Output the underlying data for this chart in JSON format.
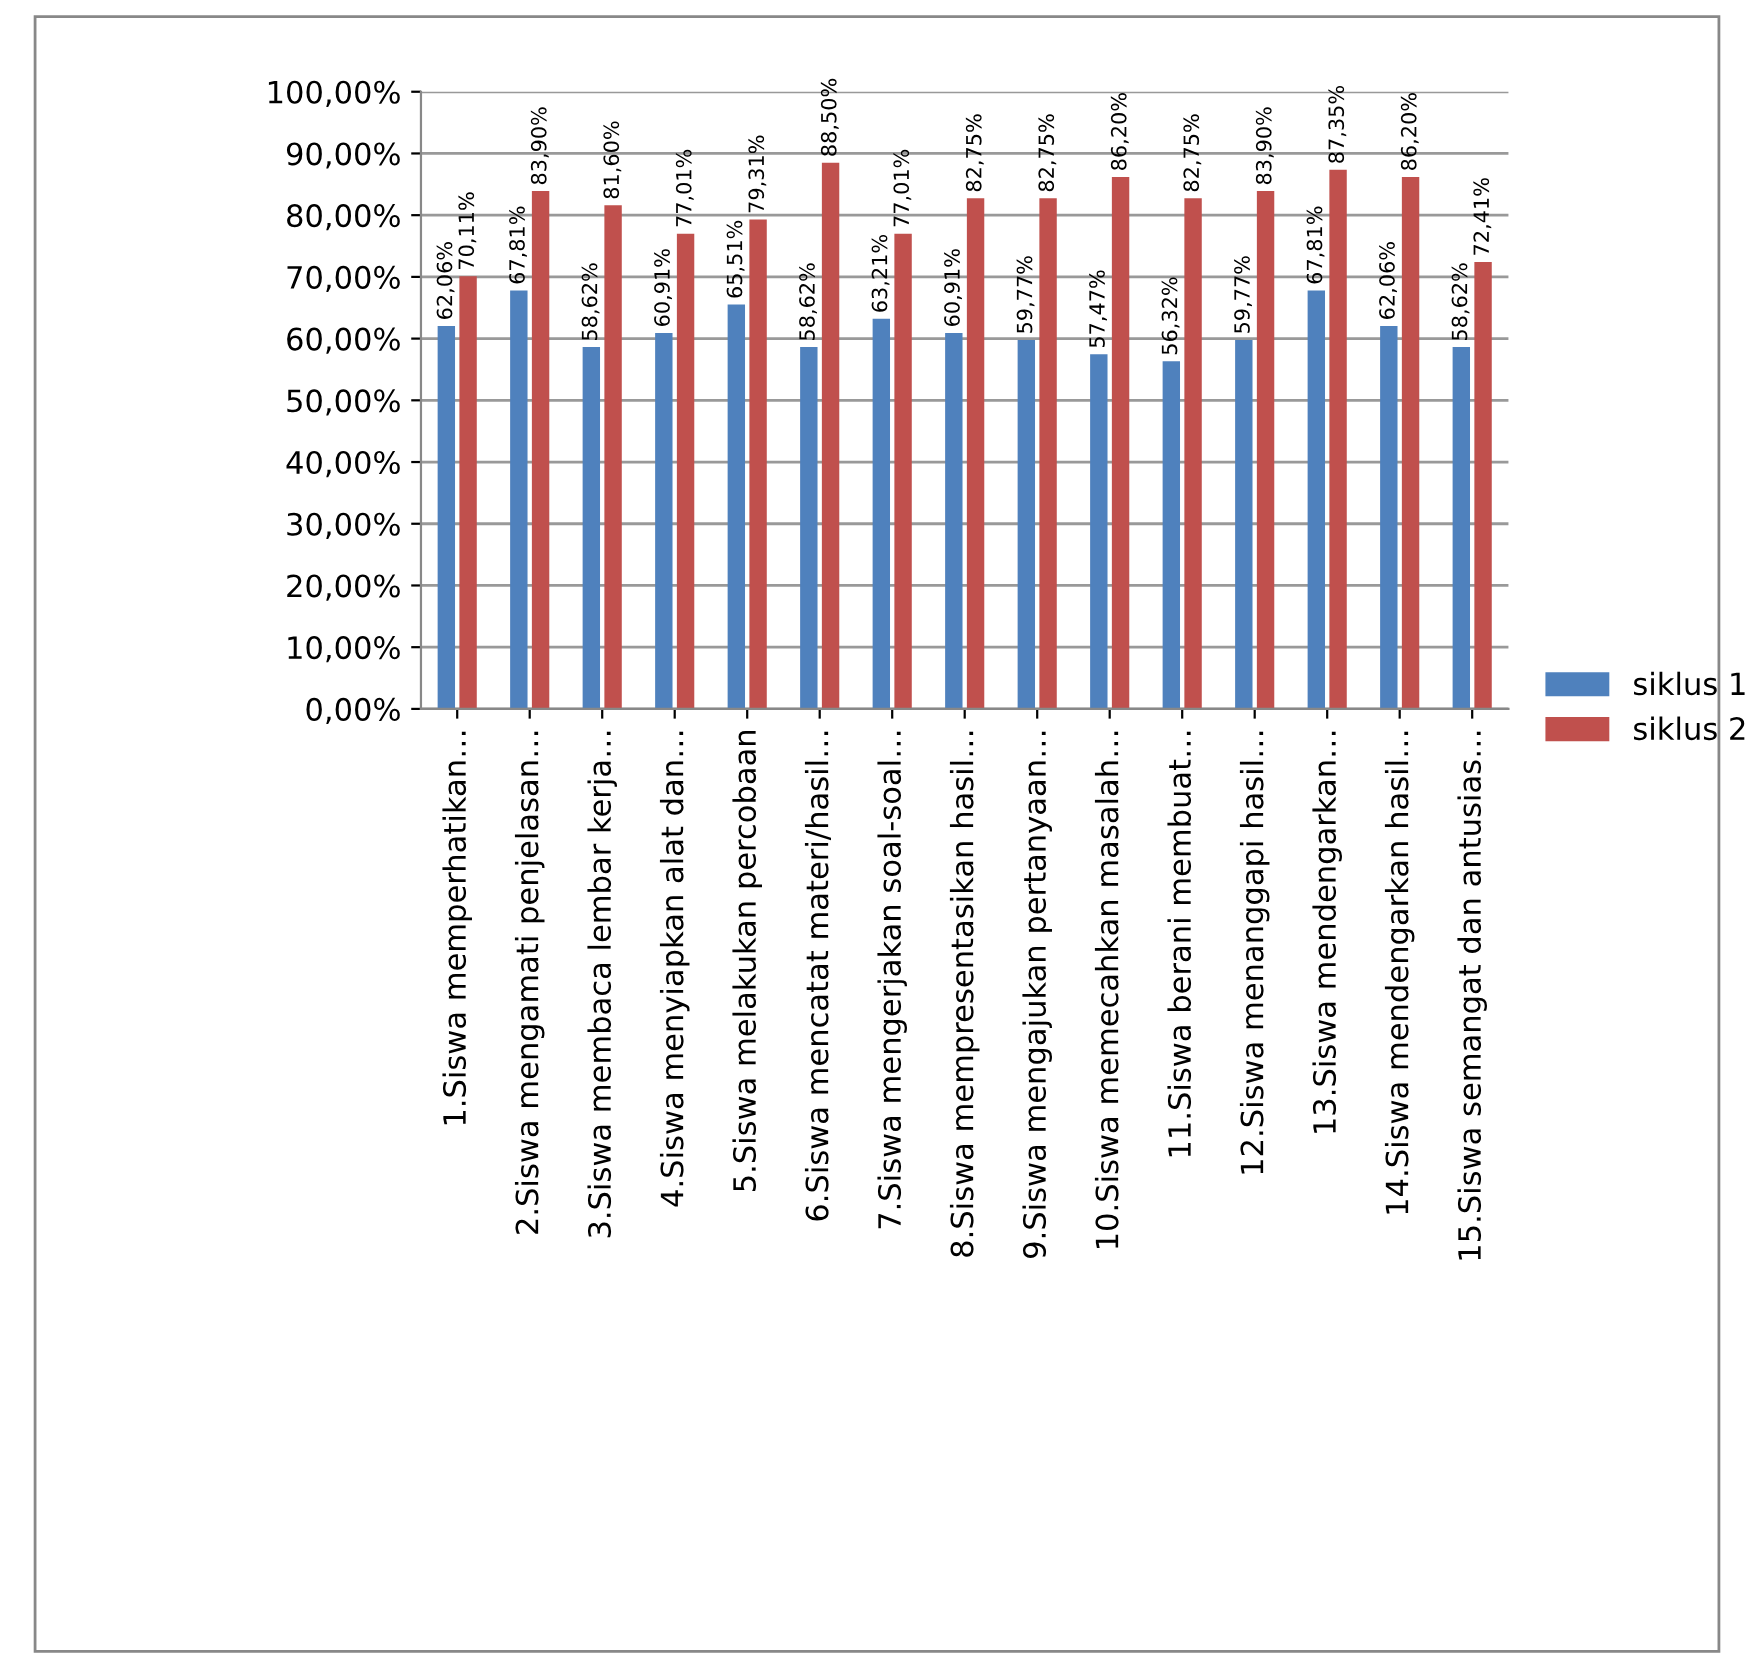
{
  "chart_data": {
    "type": "bar",
    "categories": [
      "1.Siswa memperhatikan…",
      "2.Siswa mengamati penjelasan…",
      "3.Siswa membaca lembar kerja…",
      "4.Siswa menyiapkan alat dan…",
      "5.Siswa melakukan percobaan",
      "6.Siswa mencatat materi/hasil…",
      "7.Siswa mengerjakan soal-soal…",
      "8.Siswa mempresentasikan hasil…",
      "9.Siswa mengajukan pertanyaan…",
      "10.Siswa memecahkan masalah…",
      "11.Siswa berani membuat…",
      "12.Siswa menanggapi hasil…",
      "13.Siswa mendengarkan…",
      "14.Siswa mendengarkan hasil…",
      "15.Siswa semangat dan antusias…"
    ],
    "series": [
      {
        "name": "siklus 1",
        "color": "#4f81bd",
        "values": [
          62.06,
          67.81,
          58.62,
          60.91,
          65.51,
          58.62,
          63.21,
          60.91,
          59.77,
          57.47,
          56.32,
          59.77,
          67.81,
          62.06,
          58.62
        ],
        "value_labels": [
          "62,06%",
          "67,81%",
          "58,62%",
          "60,91%",
          "65,51%",
          "58,62%",
          "63,21%",
          "60,91%",
          "59,77%",
          "57,47%",
          "56,32%",
          "59,77%",
          "67,81%",
          "62,06%",
          "58,62%"
        ]
      },
      {
        "name": "siklus 2",
        "color": "#c0504d",
        "values": [
          70.11,
          83.9,
          81.6,
          77.01,
          79.31,
          88.5,
          77.01,
          82.75,
          82.75,
          86.2,
          82.75,
          83.9,
          87.35,
          86.2,
          72.41
        ],
        "value_labels": [
          "70,11%",
          "83,90%",
          "81,60%",
          "77,01%",
          "79,31%",
          "88,50%",
          "77,01%",
          "82,75%",
          "82,75%",
          "86,20%",
          "82,75%",
          "83,90%",
          "87,35%",
          "86,20%",
          "72,41%"
        ]
      }
    ],
    "ylim": [
      0,
      100
    ],
    "yticks": [
      {
        "value": 0,
        "label": "0,00%"
      },
      {
        "value": 10,
        "label": "10,00%"
      },
      {
        "value": 20,
        "label": "20,00%"
      },
      {
        "value": 30,
        "label": "30,00%"
      },
      {
        "value": 40,
        "label": "40,00%"
      },
      {
        "value": 50,
        "label": "50,00%"
      },
      {
        "value": 60,
        "label": "60,00%"
      },
      {
        "value": 70,
        "label": "70,00%"
      },
      {
        "value": 80,
        "label": "80,00%"
      },
      {
        "value": 90,
        "label": "90,00%"
      },
      {
        "value": 100,
        "label": "100,00%"
      }
    ],
    "grid": "y",
    "legend": "right"
  }
}
